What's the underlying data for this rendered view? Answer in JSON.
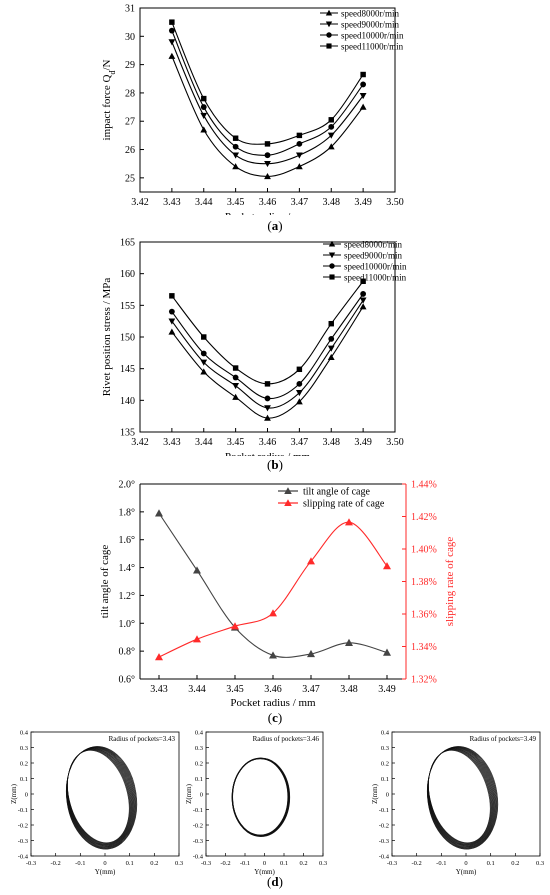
{
  "charts": [
    {
      "id": "a",
      "type": "line",
      "caption_letter": "a",
      "xlabel": "Pocket radius / mm",
      "ylabel": "impact force Q",
      "ylabel_sub": "d",
      "ylabel_unit": "/N",
      "xlim": [
        3.42,
        3.5
      ],
      "ylim": [
        24.5,
        31
      ],
      "xticks": [
        "3.42",
        "3.43",
        "3.44",
        "3.45",
        "3.46",
        "3.47",
        "3.48",
        "3.49",
        "3.50"
      ],
      "yticks": [
        "25",
        "26",
        "27",
        "28",
        "29",
        "30",
        "31"
      ],
      "legend": "top-right",
      "x": [
        3.43,
        3.44,
        3.45,
        3.46,
        3.47,
        3.48,
        3.49
      ],
      "series": [
        {
          "name": "speed8000r/min",
          "marker": "triangle-up",
          "values": [
            29.3,
            26.7,
            25.4,
            25.05,
            25.4,
            26.1,
            27.5
          ]
        },
        {
          "name": "speed9000r/min",
          "marker": "triangle-down",
          "values": [
            29.8,
            27.2,
            25.8,
            25.5,
            25.8,
            26.5,
            27.9
          ]
        },
        {
          "name": "speed10000r/min",
          "marker": "circle",
          "values": [
            30.2,
            27.5,
            26.1,
            25.8,
            26.2,
            26.8,
            28.3
          ]
        },
        {
          "name": "speed11000r/min",
          "marker": "square",
          "values": [
            30.5,
            27.8,
            26.4,
            26.2,
            26.5,
            27.05,
            28.65
          ]
        }
      ]
    },
    {
      "id": "b",
      "type": "line",
      "caption_letter": "b",
      "xlabel": "Pocket radius / mm",
      "ylabel": "Rivet position stress / MPa",
      "xlim": [
        3.42,
        3.5
      ],
      "ylim": [
        135,
        165
      ],
      "xticks": [
        "3.42",
        "3.43",
        "3.44",
        "3.45",
        "3.46",
        "3.47",
        "3.48",
        "3.49",
        "3.50"
      ],
      "yticks": [
        "135",
        "140",
        "145",
        "150",
        "155",
        "160",
        "165"
      ],
      "legend": "top-right",
      "x": [
        3.43,
        3.44,
        3.45,
        3.46,
        3.47,
        3.48,
        3.49
      ],
      "series": [
        {
          "name": "speed8000r/min",
          "marker": "triangle-up",
          "values": [
            150.8,
            144.5,
            140.5,
            137.2,
            139.8,
            146.8,
            154.8
          ]
        },
        {
          "name": "speed9000r/min",
          "marker": "triangle-down",
          "values": [
            152.5,
            146.0,
            142.3,
            138.8,
            141.2,
            148.2,
            155.8
          ]
        },
        {
          "name": "speed10000r/min",
          "marker": "circle",
          "values": [
            154.0,
            147.4,
            143.6,
            140.3,
            142.6,
            149.7,
            156.8
          ]
        },
        {
          "name": "speed11000r/min",
          "marker": "square",
          "values": [
            156.5,
            150.0,
            145.1,
            142.6,
            144.9,
            152.1,
            158.8
          ]
        }
      ]
    },
    {
      "id": "c",
      "type": "line",
      "caption_letter": "c",
      "xlabel": "Pocket radius / mm",
      "ylabel": "tilt angle of cage",
      "ylabel_right": "slipping rate of cage",
      "xlim": [
        3.425,
        3.495
      ],
      "ylim": [
        0.6,
        2.0
      ],
      "ylim_right": [
        1.32,
        1.44
      ],
      "xticks": [
        "3.43",
        "3.44",
        "3.45",
        "3.46",
        "3.47",
        "3.48",
        "3.49"
      ],
      "yticks": [
        "0.6°",
        "0.8°",
        "1.0°",
        "1.2°",
        "1.4°",
        "1.6°",
        "1.8°",
        "2.0°"
      ],
      "yticks_right": [
        "1.32%",
        "1.34%",
        "1.36%",
        "1.38%",
        "1.40%",
        "1.42%",
        "1.44%"
      ],
      "legend": "top-right",
      "x": [
        3.43,
        3.44,
        3.45,
        3.46,
        3.47,
        3.48,
        3.49
      ],
      "series": [
        {
          "name": "tilt angle of cage",
          "axis": "left",
          "color": "#444444",
          "values": [
            1.79,
            1.38,
            0.97,
            0.77,
            0.78,
            0.86,
            0.79
          ]
        },
        {
          "name": "slipping rate of cage",
          "axis": "right",
          "color": "#ff2a2a",
          "values": [
            1.3335,
            1.3445,
            1.3525,
            1.3605,
            1.3925,
            1.4165,
            1.3895
          ]
        }
      ]
    }
  ],
  "orbits": {
    "caption_letter": "d",
    "xlabel": "Y(mm)",
    "ylabel": "Z(mm)",
    "xticks": [
      "-0.3",
      "-0.2",
      "-0.1",
      "0",
      "0.1",
      "0.2",
      "0.3"
    ],
    "yticks": [
      "0.4",
      "0.3",
      "0.2",
      "0.1",
      "0",
      "-0.1",
      "-0.2",
      "-0.3",
      "-0.4"
    ],
    "plots": [
      {
        "label": "Radius of pockets=3.43",
        "shape": "tilted",
        "spread": "high"
      },
      {
        "label": "Radius of pockets=3.46",
        "shape": "round",
        "spread": "low"
      },
      {
        "label": "Radius of pockets=3.49",
        "shape": "tilted",
        "spread": "high"
      }
    ]
  }
}
